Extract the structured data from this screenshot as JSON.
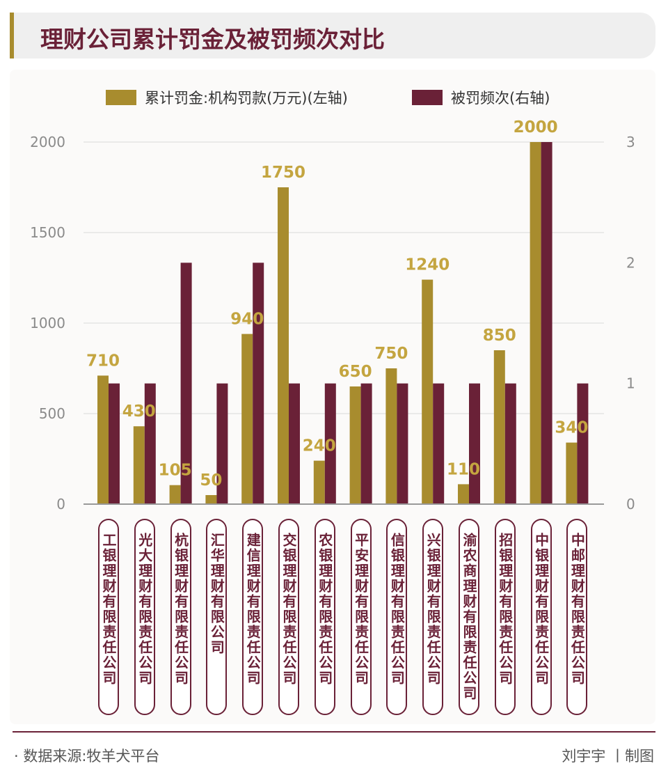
{
  "title": "理财公司累计罚金及被罚频次对比",
  "legend": {
    "fine_label": "累计罚金:机构罚款(万元)(左轴)",
    "freq_label": "被罚频次(右轴)"
  },
  "colors": {
    "fine": "#a88c2e",
    "freq": "#6a2137",
    "value_label": "#c4a540",
    "title_bg": "#efefef"
  },
  "chart_data": {
    "type": "bar",
    "title": "理财公司累计罚金及被罚频次对比",
    "categories": [
      "工银理财有限责任公司",
      "光大理财有限责任公司",
      "杭银理财有限责任公司",
      "汇华理财有限公司",
      "建信理财有限责任公司",
      "交银理财有限责任公司",
      "农银理财有限责任公司",
      "平安理财有限责任公司",
      "信银理财有限责任公司",
      "兴银理财有限责任公司",
      "渝农商理财有限责任公司",
      "招银理财有限责任公司",
      "中银理财有限责任公司",
      "中邮理财有限责任公司"
    ],
    "series": [
      {
        "name": "累计罚金:机构罚款(万元)(左轴)",
        "axis": "left",
        "values": [
          710,
          430,
          105,
          50,
          940,
          1750,
          240,
          650,
          750,
          1240,
          110,
          850,
          2000,
          340
        ]
      },
      {
        "name": "被罚频次(右轴)",
        "axis": "right",
        "values": [
          1,
          1,
          2,
          1,
          2,
          1,
          1,
          1,
          1,
          1,
          1,
          1,
          3,
          1
        ]
      }
    ],
    "left_axis": {
      "ylim": [
        0,
        2000
      ],
      "ticks": [
        "0",
        "500",
        "1000",
        "1500",
        "2000"
      ]
    },
    "right_axis": {
      "ylim": [
        0,
        3
      ],
      "ticks": [
        "0",
        "1",
        "2",
        "3"
      ]
    },
    "grid": true,
    "legend_position": "top"
  },
  "footer": {
    "source": "· 数据来源:牧羊犬平台",
    "credit": "刘宇宇 丨制图"
  }
}
